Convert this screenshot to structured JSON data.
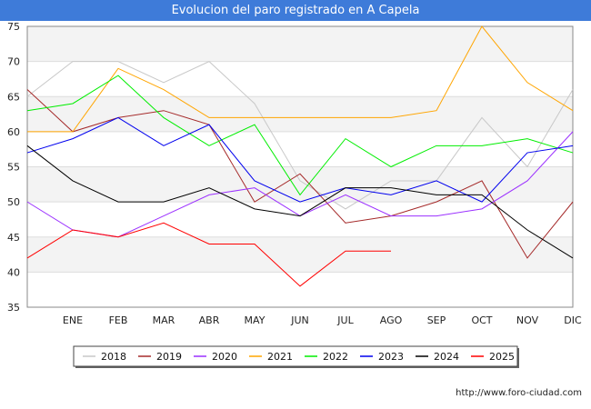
{
  "header": {
    "title": "Evolucion del paro registrado en A Capela"
  },
  "footer": {
    "url": "http://www.foro-ciudad.com"
  },
  "chart_data": {
    "type": "line",
    "title": "Evolucion del paro registrado en A Capela",
    "categories": [
      "",
      "ENE",
      "FEB",
      "MAR",
      "ABR",
      "MAY",
      "JUN",
      "JUL",
      "AGO",
      "SEP",
      "OCT",
      "NOV",
      "DIC"
    ],
    "ylim": [
      35,
      75
    ],
    "yticks": [
      35,
      40,
      45,
      50,
      55,
      60,
      65,
      70,
      75
    ],
    "grid": "horizontal",
    "legend_position": "bottom",
    "series": [
      {
        "name": "2018",
        "color": "#c8c8c8",
        "values": [
          65,
          70,
          70,
          67,
          70,
          64,
          53,
          49,
          53,
          53,
          62,
          55,
          66
        ]
      },
      {
        "name": "2019",
        "color": "#a52a2a",
        "values": [
          66,
          60,
          62,
          63,
          61,
          50,
          54,
          47,
          48,
          50,
          53,
          42,
          50
        ]
      },
      {
        "name": "2020",
        "color": "#9b30ff",
        "values": [
          50,
          46,
          45,
          48,
          51,
          52,
          48,
          51,
          48,
          48,
          49,
          53,
          60
        ]
      },
      {
        "name": "2021",
        "color": "#ffa500",
        "values": [
          60,
          60,
          69,
          66,
          62,
          62,
          62,
          62,
          62,
          63,
          75,
          67,
          63
        ]
      },
      {
        "name": "2022",
        "color": "#00ee00",
        "values": [
          63,
          64,
          68,
          62,
          58,
          61,
          51,
          59,
          55,
          58,
          58,
          59,
          57
        ]
      },
      {
        "name": "2023",
        "color": "#0000ee",
        "values": [
          57,
          59,
          62,
          58,
          61,
          53,
          50,
          52,
          51,
          53,
          50,
          57,
          58
        ]
      },
      {
        "name": "2024",
        "color": "#000000",
        "values": [
          58,
          53,
          50,
          50,
          52,
          49,
          48,
          52,
          52,
          51,
          51,
          46,
          42
        ]
      },
      {
        "name": "2025",
        "color": "#ff0000",
        "values": [
          42,
          46,
          45,
          47,
          44,
          44,
          38,
          43,
          43,
          null,
          null,
          null,
          null
        ]
      }
    ]
  }
}
